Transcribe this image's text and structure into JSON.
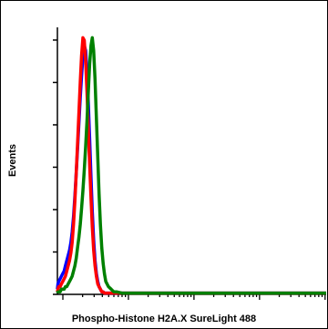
{
  "chart_data": {
    "type": "line",
    "title": "",
    "xlabel": "Phospho-Histone H2A.X SureLight 488",
    "ylabel": "Events",
    "xscale": "log",
    "grid": false,
    "legend": "none",
    "x": [
      0,
      2,
      5,
      10,
      15,
      20,
      25,
      30,
      35,
      40,
      45,
      50,
      55,
      60,
      65,
      70,
      75,
      80,
      85,
      90,
      95,
      100,
      105,
      110,
      115,
      120,
      125,
      130,
      135,
      140,
      145,
      150,
      155,
      160,
      165,
      170,
      175,
      180,
      190,
      200,
      210,
      220,
      240,
      260,
      280,
      300,
      320,
      340,
      360,
      380,
      400,
      430,
      460,
      500,
      560,
      620,
      700,
      800,
      900,
      1000
    ],
    "series": [
      {
        "color": "#0000ff",
        "values": [
          2,
          4,
          5,
          6,
          7,
          8,
          9,
          11,
          13,
          15,
          17,
          20,
          24,
          30,
          38,
          47,
          56,
          66,
          76,
          84,
          92,
          96,
          94,
          86,
          74,
          60,
          45,
          32,
          21,
          13,
          8,
          5,
          3,
          2,
          1,
          1,
          0.5,
          0.5,
          0.5,
          0.5,
          0.5,
          0.5,
          0.5,
          0.5,
          0.5,
          0.5,
          0.5,
          0.5,
          0.5,
          0.5,
          0.5,
          0.5,
          0.5,
          0.5,
          0.5,
          0.5,
          0.5,
          0.5,
          0.5,
          0.5
        ]
      },
      {
        "color": "#ff0000",
        "values": [
          1,
          2,
          3,
          3,
          4,
          5,
          6,
          7,
          9,
          11,
          13,
          16,
          20,
          27,
          36,
          47,
          58,
          70,
          82,
          92,
          99,
          98,
          90,
          78,
          64,
          50,
          37,
          26,
          17,
          11,
          7,
          4,
          3,
          2,
          1,
          1,
          0.5,
          0.5,
          0.5,
          0.5,
          0.5,
          0.5,
          0.5,
          0.5,
          0.5,
          0.5,
          0.5,
          0.5,
          0.5,
          0.5,
          0.5,
          0.5,
          0.5,
          0.5,
          0.5,
          0.5,
          0.5,
          0.5,
          0.5,
          0.5
        ]
      },
      {
        "color": "#008000",
        "values": [
          0.5,
          1,
          1,
          1,
          2,
          2,
          2,
          3,
          3,
          4,
          5,
          6,
          7,
          9,
          11,
          14,
          18,
          22,
          27,
          33,
          40,
          48,
          57,
          67,
          78,
          89,
          96,
          99,
          94,
          83,
          68,
          53,
          39,
          27,
          18,
          12,
          8,
          5,
          3,
          2,
          1,
          1,
          0.5,
          0.5,
          0.5,
          0.5,
          0.5,
          0.5,
          0.5,
          0.5,
          0.5,
          0.5,
          0.5,
          0.5,
          0.5,
          0.5,
          0.5,
          0.5,
          0.5,
          0.5
        ]
      }
    ],
    "xlim": [
      0,
      1000
    ],
    "ylim": [
      0,
      103
    ]
  }
}
